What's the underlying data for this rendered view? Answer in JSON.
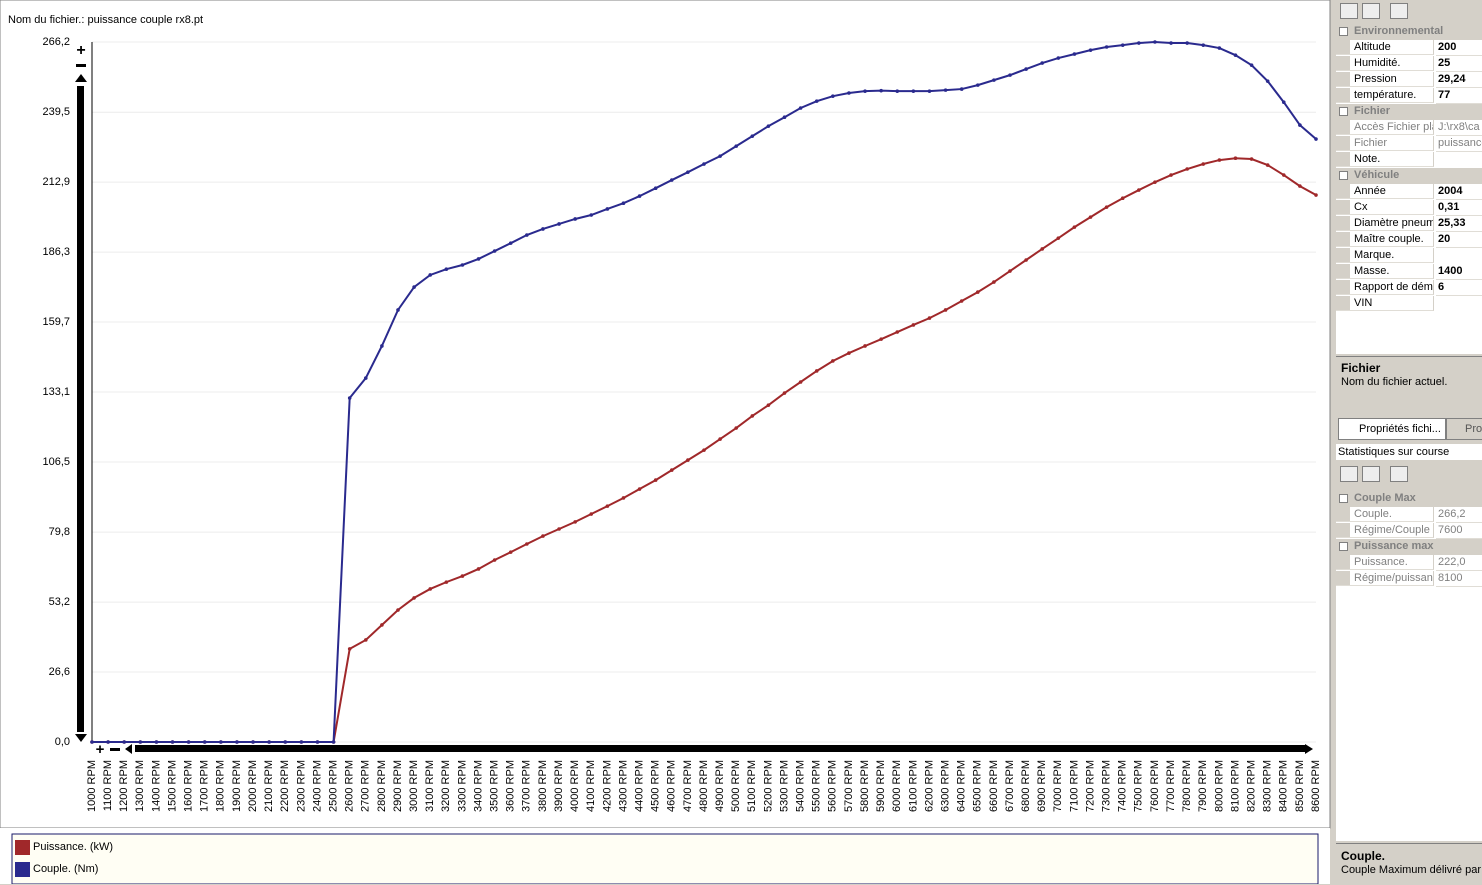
{
  "file_label": "Nom du fichier.: puissance couple rx8.pt",
  "chart_data": {
    "type": "line",
    "grid": true,
    "categories": [
      "1000 RPM",
      "1100 RPM",
      "1200 RPM",
      "1300 RPM",
      "1400 RPM",
      "1500 RPM",
      "1600 RPM",
      "1700 RPM",
      "1800 RPM",
      "1900 RPM",
      "2000 RPM",
      "2100 RPM",
      "2200 RPM",
      "2300 RPM",
      "2400 RPM",
      "2500 RPM",
      "2600 RPM",
      "2700 RPM",
      "2800 RPM",
      "2900 RPM",
      "3000 RPM",
      "3100 RPM",
      "3200 RPM",
      "3300 RPM",
      "3400 RPM",
      "3500 RPM",
      "3600 RPM",
      "3700 RPM",
      "3800 RPM",
      "3900 RPM",
      "4000 RPM",
      "4100 RPM",
      "4200 RPM",
      "4300 RPM",
      "4400 RPM",
      "4500 RPM",
      "4600 RPM",
      "4700 RPM",
      "4800 RPM",
      "4900 RPM",
      "5000 RPM",
      "5100 RPM",
      "5200 RPM",
      "5300 RPM",
      "5400 RPM",
      "5500 RPM",
      "5600 RPM",
      "5700 RPM",
      "5800 RPM",
      "5900 RPM",
      "6000 RPM",
      "6100 RPM",
      "6200 RPM",
      "6300 RPM",
      "6400 RPM",
      "6500 RPM",
      "6600 RPM",
      "6700 RPM",
      "6800 RPM",
      "6900 RPM",
      "7000 RPM",
      "7100 RPM",
      "7200 RPM",
      "7300 RPM",
      "7400 RPM",
      "7500 RPM",
      "7600 RPM",
      "7700 RPM",
      "7800 RPM",
      "7900 RPM",
      "8000 RPM",
      "8100 RPM",
      "8200 RPM",
      "8300 RPM",
      "8400 RPM",
      "8500 RPM",
      "8600 RPM"
    ],
    "series": [
      {
        "name": "Puissance. (kW)",
        "color": "#a0282a",
        "values": [
          0,
          0,
          0,
          0,
          0,
          0,
          0,
          0,
          0,
          0,
          0,
          0,
          0,
          0,
          0,
          0,
          35.4,
          38.8,
          44.5,
          50.2,
          54.8,
          58.2,
          60.8,
          63.1,
          65.8,
          69.2,
          72.2,
          75.3,
          78.3,
          81.0,
          83.7,
          86.7,
          89.7,
          92.8,
          96.2,
          99.6,
          103.4,
          107.2,
          111.0,
          115.2,
          119.4,
          124.0,
          128.1,
          132.7,
          136.9,
          141.1,
          144.9,
          147.9,
          150.6,
          153.2,
          155.9,
          158.6,
          161.2,
          164.3,
          167.7,
          171.1,
          174.9,
          179.1,
          183.3,
          187.5,
          191.6,
          195.8,
          199.6,
          203.4,
          206.8,
          209.9,
          212.9,
          215.6,
          217.9,
          219.8,
          221.3,
          222.0,
          221.7,
          219.4,
          215.6,
          211.4,
          208.0
        ]
      },
      {
        "name": "Couple. (Nm)",
        "color": "#2a2a8e",
        "values": [
          0,
          0,
          0,
          0,
          0,
          0,
          0,
          0,
          0,
          0,
          0,
          0,
          0,
          0,
          0,
          0,
          130.8,
          138.4,
          150.6,
          164.3,
          173.0,
          177.6,
          179.8,
          181.4,
          183.7,
          186.7,
          189.7,
          192.8,
          195.1,
          197.0,
          198.9,
          200.4,
          202.7,
          204.9,
          207.6,
          210.6,
          213.7,
          216.7,
          219.8,
          222.8,
          226.6,
          230.4,
          234.2,
          237.6,
          241.1,
          243.7,
          245.6,
          246.8,
          247.5,
          247.7,
          247.5,
          247.5,
          247.5,
          247.9,
          248.3,
          249.8,
          251.7,
          253.6,
          255.9,
          258.2,
          260.1,
          261.6,
          263.1,
          264.3,
          265.0,
          265.8,
          266.2,
          265.8,
          265.8,
          265.0,
          263.9,
          261.2,
          257.4,
          251.3,
          243.3,
          234.6,
          229.3
        ]
      }
    ],
    "ylim": [
      0,
      266.2
    ],
    "yticks": [
      {
        "value": 0,
        "label": "0,0"
      },
      {
        "value": 26.6,
        "label": "26,6"
      },
      {
        "value": 53.2,
        "label": "53,2"
      },
      {
        "value": 79.8,
        "label": "79,8"
      },
      {
        "value": 106.5,
        "label": "106,5"
      },
      {
        "value": 133.1,
        "label": "133,1"
      },
      {
        "value": 159.7,
        "label": "159,7"
      },
      {
        "value": 186.3,
        "label": "186,3"
      },
      {
        "value": 212.9,
        "label": "212,9"
      },
      {
        "value": 239.5,
        "label": "239,5"
      },
      {
        "value": 266.2,
        "label": "266,2"
      }
    ]
  },
  "properties": {
    "sections": [
      {
        "title": "Environnemental",
        "rows": [
          {
            "name": "Altitude",
            "value": "200"
          },
          {
            "name": "Humidité.",
            "value": "25"
          },
          {
            "name": "Pression",
            "value": "29,24"
          },
          {
            "name": "température.",
            "value": "77"
          }
        ]
      },
      {
        "title": "Fichier",
        "rows": [
          {
            "name": "Accès Fichier pla",
            "value": "J:\\rx8\\ca",
            "readonly": true
          },
          {
            "name": "Fichier",
            "value": "puissance",
            "readonly": true
          },
          {
            "name": "Note."
          }
        ]
      },
      {
        "title": "Véhicule",
        "rows": [
          {
            "name": "Année",
            "value": "2004"
          },
          {
            "name": "Cx",
            "value": "0,31"
          },
          {
            "name": "Diamètre pneum",
            "value": "25,33"
          },
          {
            "name": "Maître couple.",
            "value": "20"
          },
          {
            "name": "Marque."
          },
          {
            "name": "Masse.",
            "value": "1400"
          },
          {
            "name": "Rapport de dému",
            "value": "6"
          },
          {
            "name": "VIN"
          }
        ]
      }
    ],
    "description_title": "Fichier",
    "description": "Nom du fichier actuel."
  },
  "tabs": [
    "Propriétés fichi...",
    "Pro"
  ],
  "stats_title": "Statistiques sur course",
  "stats": {
    "sections": [
      {
        "title": "Couple Max",
        "rows": [
          {
            "name": "Couple.",
            "value": "266,2",
            "readonly": true
          },
          {
            "name": "Régime/Couple",
            "value": "7600",
            "readonly": true
          }
        ]
      },
      {
        "title": "Puissance max",
        "rows": [
          {
            "name": "Puissance.",
            "value": "222,0",
            "readonly": true
          },
          {
            "name": "Régime/puissan",
            "value": "8100",
            "readonly": true
          }
        ]
      }
    ],
    "description_title": "Couple.",
    "description": "Couple Maximum délivré par l"
  }
}
